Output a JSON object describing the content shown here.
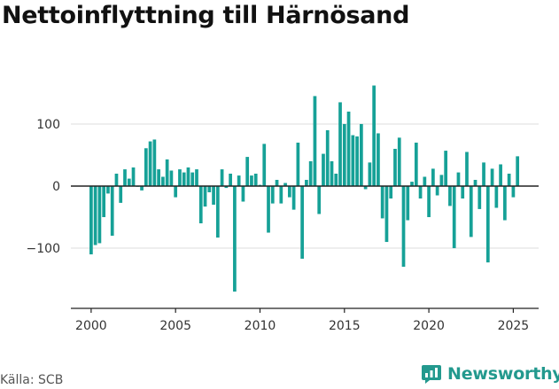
{
  "title": "Nettoinflyttning till Härnösand",
  "source": "Källa: SCB",
  "brand": {
    "name": "Newsworthy",
    "icon": "newsworthy-logo-icon",
    "color": "#23998e"
  },
  "colors": {
    "bar": "#16a197",
    "zero_line": "#222222",
    "grid": "#dddddd",
    "axis": "#222222"
  },
  "chart_data": {
    "type": "bar",
    "title": "Nettoinflyttning till Härnösand",
    "xlabel": "",
    "ylabel": "",
    "period": "quarterly",
    "x_start": 2000,
    "values": [
      -110,
      -95,
      -92,
      -50,
      -12,
      -80,
      20,
      -27,
      27,
      12,
      30,
      0,
      -7,
      61,
      72,
      75,
      27,
      15,
      43,
      25,
      -18,
      27,
      22,
      30,
      22,
      27,
      -60,
      -33,
      -10,
      -30,
      -83,
      27,
      -3,
      20,
      -170,
      17,
      -25,
      47,
      17,
      20,
      2,
      68,
      -75,
      -28,
      10,
      -28,
      5,
      -18,
      -38,
      70,
      -117,
      10,
      40,
      145,
      -45,
      52,
      90,
      40,
      20,
      135,
      100,
      120,
      82,
      80,
      100,
      -5,
      38,
      162,
      85,
      -52,
      -90,
      -20,
      60,
      78,
      -130,
      -55,
      7,
      70,
      -20,
      15,
      -50,
      28,
      -15,
      18,
      57,
      -32,
      -100,
      22,
      -20,
      55,
      -82,
      10,
      -37,
      38,
      -123,
      28,
      -35,
      35,
      -55,
      20,
      -18,
      48
    ],
    "ylim": [
      -197,
      197
    ],
    "yticks": [
      -100,
      0,
      100
    ],
    "ytick_labels": [
      "−100",
      "0",
      "100"
    ],
    "xlim": [
      1998.8,
      2026.5
    ],
    "xticks": [
      2000,
      2005,
      2010,
      2015,
      2020,
      2025
    ],
    "xtick_labels": [
      "2000",
      "2005",
      "2010",
      "2015",
      "2020",
      "2025"
    ],
    "grid": true,
    "legend": "none"
  }
}
